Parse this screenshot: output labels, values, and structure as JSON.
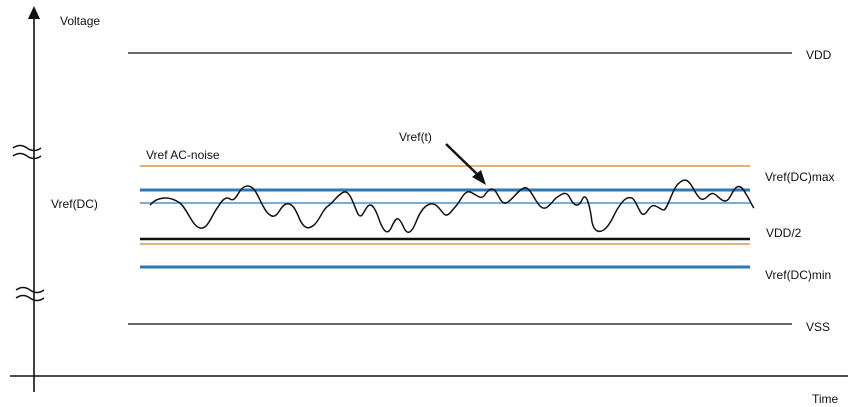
{
  "axes": {
    "y_label": "Voltage",
    "x_label": "Time"
  },
  "levels": {
    "vdd": "VDD",
    "vss": "VSS",
    "vdd_half": "VDD/2",
    "vref_dc_max": "Vref(DC)max",
    "vref_dc_min": "Vref(DC)min"
  },
  "labels": {
    "vref_ac_noise": "Vref AC-noise",
    "vref_dc": "Vref(DC)",
    "vref_t": "Vref(t)"
  },
  "colors": {
    "axis": "#111111",
    "level_line": "#111111",
    "noise_band": "#d8964a",
    "dc_limit": "#2f78b4",
    "dc_line": "#66a3d6",
    "signal": "#111111"
  }
}
